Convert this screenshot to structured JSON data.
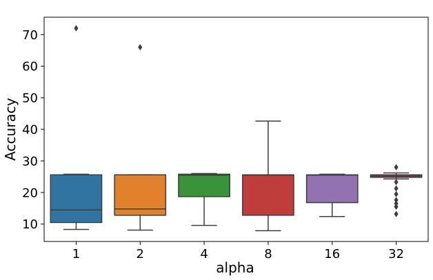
{
  "chart_data": {
    "type": "box",
    "title": "",
    "xlabel": "alpha",
    "ylabel": "Accuracy",
    "categories": [
      "1",
      "2",
      "4",
      "8",
      "16",
      "32"
    ],
    "ylim": [
      4.5,
      75.5
    ],
    "yticks": [
      10,
      20,
      30,
      40,
      50,
      60,
      70
    ],
    "grid": false,
    "boxes": [
      {
        "category": "1",
        "color": "#3274a1",
        "whisker_low": 8.3,
        "q1": 10.5,
        "median": 14.5,
        "q3": 25.6,
        "whisker_high": 25.8,
        "outliers": [
          72.0
        ]
      },
      {
        "category": "2",
        "color": "#e1812c",
        "whisker_low": 8.1,
        "q1": 12.8,
        "median": 14.8,
        "q3": 25.6,
        "whisker_high": 25.6,
        "outliers": [
          66.0
        ]
      },
      {
        "category": "4",
        "color": "#3a923a",
        "whisker_low": 9.6,
        "q1": 18.7,
        "median": 25.5,
        "q3": 25.8,
        "whisker_high": 26.0,
        "outliers": []
      },
      {
        "category": "8",
        "color": "#c03d3e",
        "whisker_low": 7.9,
        "q1": 12.8,
        "median": 25.5,
        "q3": 25.6,
        "whisker_high": 42.6,
        "outliers": []
      },
      {
        "category": "16",
        "color": "#9372b2",
        "whisker_low": 12.4,
        "q1": 16.8,
        "median": 25.5,
        "q3": 25.6,
        "whisker_high": 25.8,
        "outliers": []
      },
      {
        "category": "32",
        "color": "#c03d3e",
        "whisker_low": 24.3,
        "q1": 24.8,
        "median": 25.2,
        "q3": 25.6,
        "whisker_high": 26.2,
        "outliers": [
          28.0,
          23.3,
          21.3,
          19.5,
          17.6,
          16.5,
          15.5,
          13.2
        ]
      }
    ]
  }
}
